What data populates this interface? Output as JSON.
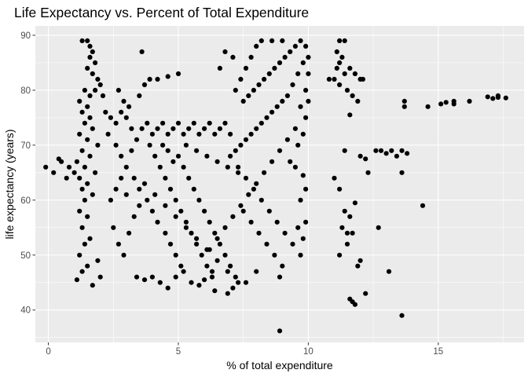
{
  "chart_data": {
    "type": "scatter",
    "title": "Life Expectancy vs. Percent of Total Expenditure",
    "xlabel": "% of total expenditure",
    "ylabel": "life expectancy (years)",
    "xlim": [
      -0.5,
      18.3
    ],
    "ylim": [
      34.1,
      91.7
    ],
    "x_ticks": [
      0,
      5,
      10,
      15
    ],
    "y_ticks": [
      40,
      50,
      60,
      70,
      80,
      90
    ],
    "grid": true,
    "legend": "none",
    "colors": {
      "panel": "#ebebeb",
      "grid": "#ffffff",
      "point": "#000000"
    },
    "points": [
      [
        1.3,
        89
      ],
      [
        1.5,
        89
      ],
      [
        1.6,
        88
      ],
      [
        1.7,
        87
      ],
      [
        1.6,
        86
      ],
      [
        1.8,
        85
      ],
      [
        1.5,
        84
      ],
      [
        1.7,
        83
      ],
      [
        1.9,
        82
      ],
      [
        2.0,
        81
      ],
      [
        1.4,
        80
      ],
      [
        1.6,
        79
      ],
      [
        1.2,
        78
      ],
      [
        1.5,
        77
      ],
      [
        1.8,
        80
      ],
      [
        2.1,
        79
      ],
      [
        1.3,
        76
      ],
      [
        1.6,
        75
      ],
      [
        1.4,
        74
      ],
      [
        1.7,
        73
      ],
      [
        1.2,
        72
      ],
      [
        1.5,
        71
      ],
      [
        1.9,
        70
      ],
      [
        1.3,
        69
      ],
      [
        1.6,
        68
      ],
      [
        1.1,
        67
      ],
      [
        1.4,
        66
      ],
      [
        1.8,
        65
      ],
      [
        1.2,
        64
      ],
      [
        1.5,
        63
      ],
      [
        1.3,
        62
      ],
      [
        1.7,
        61
      ],
      [
        1.4,
        60
      ],
      [
        1.2,
        58
      ],
      [
        1.5,
        57
      ],
      [
        1.3,
        55
      ],
      [
        1.6,
        53
      ],
      [
        1.4,
        52
      ],
      [
        1.2,
        50
      ],
      [
        1.5,
        48
      ],
      [
        1.3,
        47
      ],
      [
        1.1,
        45.5
      ],
      [
        1.7,
        44.5
      ],
      [
        2.0,
        46
      ],
      [
        1.9,
        49
      ],
      [
        -0.1,
        66
      ],
      [
        0.2,
        65
      ],
      [
        0.5,
        67
      ],
      [
        0.8,
        66
      ],
      [
        1.0,
        65
      ],
      [
        0.7,
        64
      ],
      [
        0.4,
        67.5
      ],
      [
        2.2,
        76
      ],
      [
        2.4,
        75
      ],
      [
        2.6,
        74
      ],
      [
        2.8,
        76
      ],
      [
        3.0,
        75
      ],
      [
        3.2,
        73
      ],
      [
        3.1,
        77
      ],
      [
        2.9,
        78
      ],
      [
        2.7,
        80
      ],
      [
        3.5,
        79
      ],
      [
        3.7,
        81
      ],
      [
        3.9,
        82
      ],
      [
        4.2,
        82
      ],
      [
        4.6,
        82.5
      ],
      [
        5.0,
        83
      ],
      [
        3.6,
        87
      ],
      [
        2.3,
        72
      ],
      [
        2.6,
        70
      ],
      [
        2.8,
        68
      ],
      [
        3.0,
        66
      ],
      [
        3.3,
        64
      ],
      [
        3.5,
        62
      ],
      [
        3.8,
        60
      ],
      [
        4.0,
        58
      ],
      [
        4.2,
        56
      ],
      [
        4.5,
        54
      ],
      [
        4.7,
        52
      ],
      [
        4.9,
        50
      ],
      [
        5.1,
        48
      ],
      [
        3.4,
        46
      ],
      [
        3.7,
        45.5
      ],
      [
        4.0,
        46
      ],
      [
        4.3,
        45
      ],
      [
        4.6,
        44
      ],
      [
        4.9,
        46
      ],
      [
        5.2,
        47
      ],
      [
        5.5,
        45
      ],
      [
        2.5,
        55
      ],
      [
        2.7,
        52
      ],
      [
        2.9,
        50
      ],
      [
        3.1,
        54
      ],
      [
        3.3,
        57
      ],
      [
        3.5,
        59
      ],
      [
        2.4,
        60
      ],
      [
        2.6,
        62
      ],
      [
        2.8,
        64
      ],
      [
        3.0,
        61
      ],
      [
        3.2,
        69
      ],
      [
        3.4,
        71
      ],
      [
        3.6,
        73
      ],
      [
        3.8,
        74
      ],
      [
        4.0,
        72
      ],
      [
        4.2,
        73
      ],
      [
        4.4,
        74
      ],
      [
        4.6,
        72
      ],
      [
        4.8,
        73
      ],
      [
        5.0,
        74
      ],
      [
        5.2,
        72
      ],
      [
        5.4,
        73
      ],
      [
        5.6,
        74
      ],
      [
        5.8,
        72
      ],
      [
        6.0,
        73
      ],
      [
        6.2,
        74
      ],
      [
        6.4,
        72
      ],
      [
        6.6,
        73
      ],
      [
        6.8,
        74
      ],
      [
        7.0,
        72
      ],
      [
        3.9,
        70
      ],
      [
        4.1,
        68
      ],
      [
        4.3,
        66
      ],
      [
        4.5,
        64
      ],
      [
        4.7,
        62
      ],
      [
        4.9,
        60
      ],
      [
        5.1,
        58
      ],
      [
        5.3,
        56
      ],
      [
        5.5,
        54
      ],
      [
        5.7,
        52
      ],
      [
        5.9,
        50
      ],
      [
        6.1,
        48
      ],
      [
        6.3,
        46
      ],
      [
        5.0,
        68
      ],
      [
        5.2,
        66
      ],
      [
        5.4,
        64
      ],
      [
        5.6,
        62
      ],
      [
        5.8,
        60
      ],
      [
        6.0,
        58
      ],
      [
        6.2,
        56
      ],
      [
        6.4,
        54
      ],
      [
        6.6,
        52
      ],
      [
        6.8,
        50
      ],
      [
        7.0,
        48
      ],
      [
        7.2,
        46
      ],
      [
        4.4,
        70
      ],
      [
        4.6,
        69
      ],
      [
        4.8,
        67
      ],
      [
        5.3,
        70
      ],
      [
        5.7,
        69
      ],
      [
        6.1,
        68
      ],
      [
        6.5,
        67
      ],
      [
        6.9,
        66
      ],
      [
        7.3,
        65
      ],
      [
        3.7,
        63
      ],
      [
        4.1,
        61
      ],
      [
        4.5,
        59
      ],
      [
        4.9,
        57
      ],
      [
        5.3,
        55
      ],
      [
        5.7,
        53
      ],
      [
        6.1,
        51
      ],
      [
        6.5,
        49
      ],
      [
        6.9,
        47
      ],
      [
        6.4,
        43.5
      ],
      [
        6.9,
        43
      ],
      [
        7.1,
        44
      ],
      [
        7.3,
        45
      ],
      [
        5.8,
        44.5
      ],
      [
        6.0,
        45.5
      ],
      [
        6.3,
        47
      ],
      [
        7.2,
        80
      ],
      [
        7.4,
        82
      ],
      [
        7.6,
        84
      ],
      [
        7.8,
        86
      ],
      [
        8.0,
        88
      ],
      [
        8.2,
        89
      ],
      [
        7.1,
        86
      ],
      [
        6.8,
        87
      ],
      [
        6.6,
        84
      ],
      [
        7.5,
        78
      ],
      [
        7.7,
        79
      ],
      [
        7.9,
        80
      ],
      [
        8.1,
        81
      ],
      [
        8.3,
        82
      ],
      [
        8.5,
        83
      ],
      [
        8.7,
        84
      ],
      [
        8.9,
        85
      ],
      [
        9.1,
        86
      ],
      [
        9.3,
        87
      ],
      [
        9.5,
        88
      ],
      [
        9.7,
        89
      ],
      [
        9.0,
        89
      ],
      [
        8.6,
        89
      ],
      [
        9.9,
        88
      ],
      [
        9.8,
        85
      ],
      [
        9.6,
        83
      ],
      [
        9.4,
        81
      ],
      [
        9.2,
        79
      ],
      [
        9.0,
        78
      ],
      [
        8.8,
        77
      ],
      [
        8.6,
        76
      ],
      [
        8.4,
        75
      ],
      [
        8.2,
        74
      ],
      [
        8.0,
        73
      ],
      [
        7.8,
        72
      ],
      [
        7.6,
        71
      ],
      [
        7.4,
        70
      ],
      [
        7.2,
        69
      ],
      [
        7.0,
        68
      ],
      [
        7.3,
        66
      ],
      [
        7.6,
        64
      ],
      [
        7.9,
        62
      ],
      [
        8.2,
        60
      ],
      [
        8.5,
        58
      ],
      [
        8.8,
        56
      ],
      [
        9.1,
        54
      ],
      [
        9.4,
        52
      ],
      [
        9.7,
        50
      ],
      [
        7.5,
        58
      ],
      [
        7.8,
        56
      ],
      [
        8.1,
        54
      ],
      [
        8.4,
        52
      ],
      [
        8.7,
        50
      ],
      [
        9.0,
        48
      ],
      [
        8.9,
        46
      ],
      [
        8.0,
        47
      ],
      [
        7.6,
        45
      ],
      [
        8.9,
        36.2
      ],
      [
        9.8,
        64.5
      ],
      [
        9.9,
        62
      ],
      [
        9.7,
        60
      ],
      [
        9.5,
        66
      ],
      [
        9.3,
        67
      ],
      [
        9.6,
        70
      ],
      [
        9.8,
        72
      ],
      [
        9.9,
        75
      ],
      [
        9.7,
        77
      ],
      [
        9.9,
        80
      ],
      [
        9.5,
        73
      ],
      [
        9.2,
        71
      ],
      [
        8.9,
        69
      ],
      [
        8.6,
        67
      ],
      [
        8.3,
        65
      ],
      [
        8.0,
        63
      ],
      [
        7.7,
        61
      ],
      [
        7.4,
        59
      ],
      [
        7.1,
        57
      ],
      [
        6.8,
        55
      ],
      [
        6.5,
        53
      ],
      [
        6.2,
        51
      ],
      [
        10.0,
        86
      ],
      [
        10.0,
        83
      ],
      [
        10.0,
        78
      ],
      [
        9.9,
        56
      ],
      [
        9.6,
        55
      ],
      [
        9.8,
        53
      ],
      [
        11.2,
        89
      ],
      [
        11.4,
        89
      ],
      [
        11.1,
        87
      ],
      [
        11.3,
        86
      ],
      [
        11.2,
        85
      ],
      [
        11.1,
        84
      ],
      [
        11.4,
        83
      ],
      [
        11.6,
        84
      ],
      [
        11.8,
        83
      ],
      [
        12.0,
        82
      ],
      [
        12.1,
        82
      ],
      [
        11.0,
        82
      ],
      [
        11.2,
        81
      ],
      [
        11.5,
        80
      ],
      [
        11.7,
        79
      ],
      [
        11.9,
        78
      ],
      [
        11.6,
        75.5
      ],
      [
        10.8,
        82
      ],
      [
        11.4,
        69
      ],
      [
        11.0,
        64
      ],
      [
        11.2,
        62
      ],
      [
        11.4,
        58
      ],
      [
        11.6,
        57
      ],
      [
        11.8,
        59.5
      ],
      [
        11.3,
        55
      ],
      [
        11.5,
        54
      ],
      [
        11.7,
        54
      ],
      [
        11.2,
        50
      ],
      [
        11.5,
        52
      ],
      [
        12.0,
        49
      ],
      [
        11.9,
        48
      ],
      [
        11.6,
        42
      ],
      [
        11.7,
        41.5
      ],
      [
        11.8,
        41
      ],
      [
        12.2,
        43
      ],
      [
        12.3,
        65
      ],
      [
        12.6,
        69
      ],
      [
        12.8,
        69
      ],
      [
        12.0,
        68
      ],
      [
        12.2,
        67.5
      ],
      [
        13.0,
        68.5
      ],
      [
        13.2,
        69
      ],
      [
        13.4,
        68
      ],
      [
        13.6,
        69
      ],
      [
        13.8,
        68.5
      ],
      [
        13.6,
        65
      ],
      [
        13.6,
        39
      ],
      [
        13.1,
        47
      ],
      [
        12.7,
        55
      ],
      [
        14.4,
        59
      ],
      [
        13.7,
        78
      ],
      [
        13.7,
        77
      ],
      [
        14.6,
        77
      ],
      [
        15.1,
        77.5
      ],
      [
        15.3,
        77.8
      ],
      [
        15.6,
        78
      ],
      [
        15.6,
        77.5
      ],
      [
        16.2,
        78
      ],
      [
        16.9,
        78.8
      ],
      [
        17.1,
        78.5
      ],
      [
        17.3,
        79
      ],
      [
        17.3,
        78.7
      ],
      [
        17.6,
        78.6
      ]
    ]
  }
}
